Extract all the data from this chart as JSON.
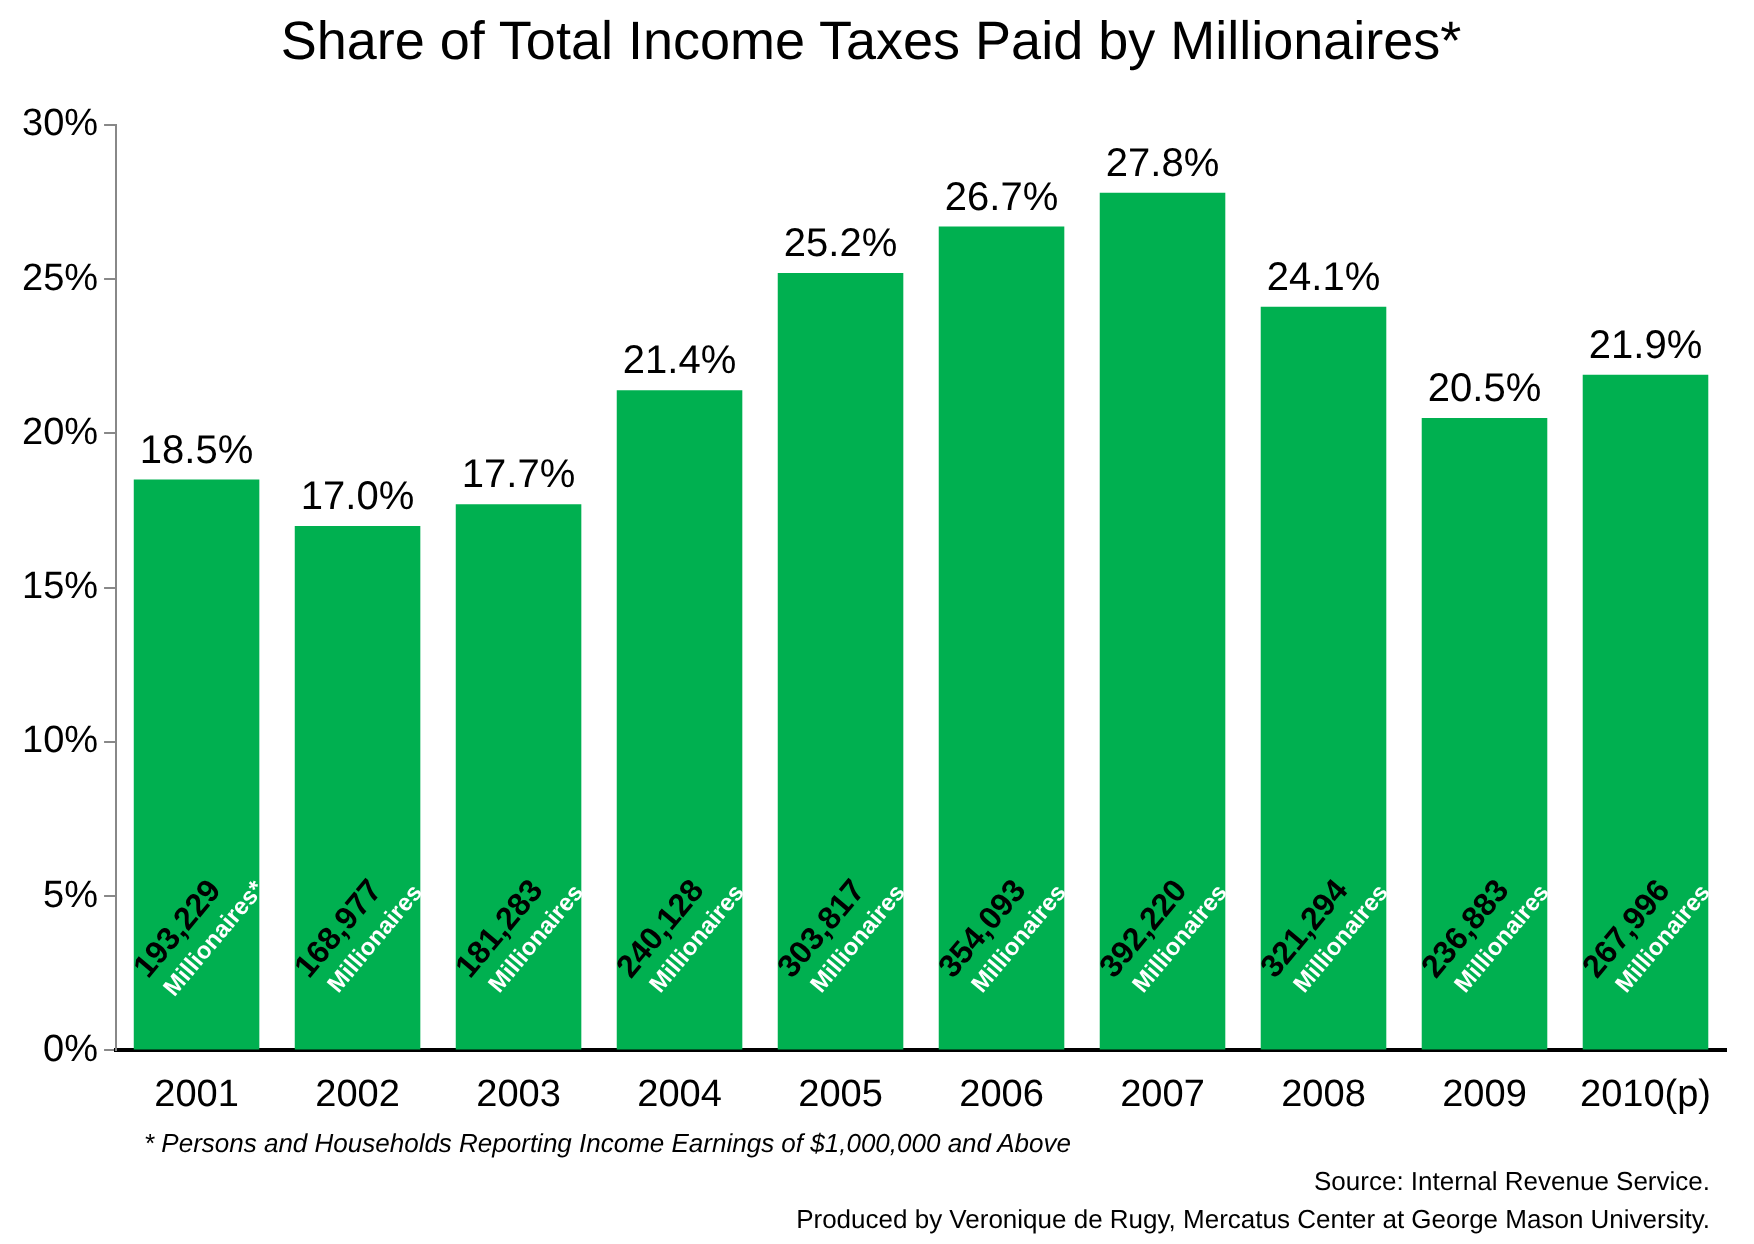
{
  "chart_data": {
    "type": "bar",
    "title": "Share of Total Income Taxes Paid by Millionaires*",
    "categories": [
      "2001",
      "2002",
      "2003",
      "2004",
      "2005",
      "2006",
      "2007",
      "2008",
      "2009",
      "2010(p)"
    ],
    "values": [
      18.5,
      17.0,
      17.7,
      21.4,
      25.2,
      26.7,
      27.8,
      24.1,
      20.5,
      21.9
    ],
    "value_labels": [
      "18.5%",
      "17.0%",
      "17.7%",
      "21.4%",
      "25.2%",
      "26.7%",
      "27.8%",
      "24.1%",
      "20.5%",
      "21.9%"
    ],
    "color": "#00b050",
    "ylim": [
      0,
      30
    ],
    "yticks": [
      {
        "value": 0,
        "label": "0%"
      },
      {
        "value": 5,
        "label": "5%"
      },
      {
        "value": 10,
        "label": "10%"
      },
      {
        "value": 15,
        "label": "15%"
      },
      {
        "value": 20,
        "label": "20%"
      },
      {
        "value": 25,
        "label": "25%"
      },
      {
        "value": 30,
        "label": "30%"
      }
    ],
    "grid": false,
    "legend": false,
    "annotations": [
      "193,229\nMillionaires*",
      "168,977\nMillionaires",
      "181,283\nMillionaires",
      "240,128\nMillionaires",
      "303,817\nMillionaires",
      "354,093\nMillionaires",
      "392,220\nMillionaires",
      "321,294\nMillionaires",
      "236,883\nMillionaires",
      "267,996\nMillionaires",
      "* Persons and Households Reporting Income Earnings of $1,000,000 and Above",
      "Source: Internal Revenue Service.",
      "Produced by Veronique de Rugy, Mercatus Center at George Mason University."
    ]
  }
}
